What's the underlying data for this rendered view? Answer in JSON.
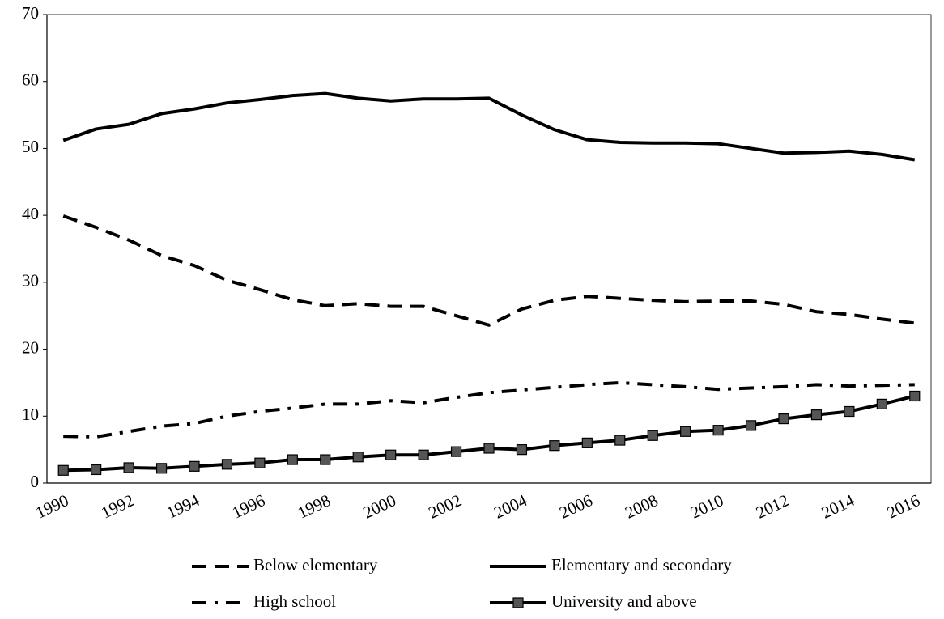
{
  "chart_data": {
    "type": "line",
    "categories": [
      "1990",
      null,
      "1992",
      null,
      "1994",
      null,
      "1996",
      null,
      "1998",
      null,
      "2000",
      null,
      "2002",
      null,
      "2004",
      null,
      "2006",
      null,
      "2008",
      null,
      "2010",
      null,
      "2012",
      null,
      "2014",
      null,
      "2016"
    ],
    "series": [
      {
        "name": "Below elementary",
        "color": "#000000",
        "line_style": "dashed",
        "values": [
          39.9,
          38.2,
          36.3,
          34.0,
          32.5,
          30.3,
          28.9,
          27.4,
          26.5,
          26.8,
          26.4,
          26.4,
          25.0,
          23.6,
          26.0,
          27.3,
          27.9,
          27.6,
          27.3,
          27.1,
          27.2,
          27.2,
          26.7,
          25.6,
          25.2,
          24.5,
          23.9
        ]
      },
      {
        "name": "Elementary and secondary",
        "color": "#000000",
        "line_style": "solid",
        "values": [
          51.2,
          52.9,
          53.6,
          55.2,
          55.9,
          56.8,
          57.3,
          57.9,
          58.2,
          57.5,
          57.1,
          57.4,
          57.4,
          57.5,
          55.0,
          52.8,
          51.3,
          50.9,
          50.8,
          50.8,
          50.7,
          50.0,
          49.3,
          49.4,
          49.6,
          49.1,
          48.3
        ]
      },
      {
        "name": "High school",
        "color": "#000000",
        "line_style": "dashdot",
        "values": [
          7.0,
          6.9,
          7.7,
          8.5,
          8.9,
          10.0,
          10.7,
          11.2,
          11.8,
          11.8,
          12.3,
          12.0,
          12.8,
          13.5,
          13.9,
          14.3,
          14.7,
          15.0,
          14.7,
          14.4,
          14.0,
          14.2,
          14.4,
          14.7,
          14.5,
          14.6,
          14.7
        ]
      },
      {
        "name": "University and above",
        "color": "#000000",
        "line_style": "solid",
        "marker": "square",
        "marker_color": "#555555",
        "values": [
          1.9,
          2.0,
          2.3,
          2.2,
          2.5,
          2.8,
          3.0,
          3.5,
          3.5,
          3.9,
          4.2,
          4.2,
          4.7,
          5.2,
          5.0,
          5.6,
          6.0,
          6.4,
          7.1,
          7.7,
          7.9,
          8.6,
          9.6,
          10.2,
          10.7,
          11.8,
          13.0
        ]
      }
    ],
    "ylim": [
      0,
      70
    ],
    "yticks": [
      0,
      10,
      20,
      30,
      40,
      50,
      60,
      70
    ],
    "grid": false,
    "legend": "bottom"
  }
}
